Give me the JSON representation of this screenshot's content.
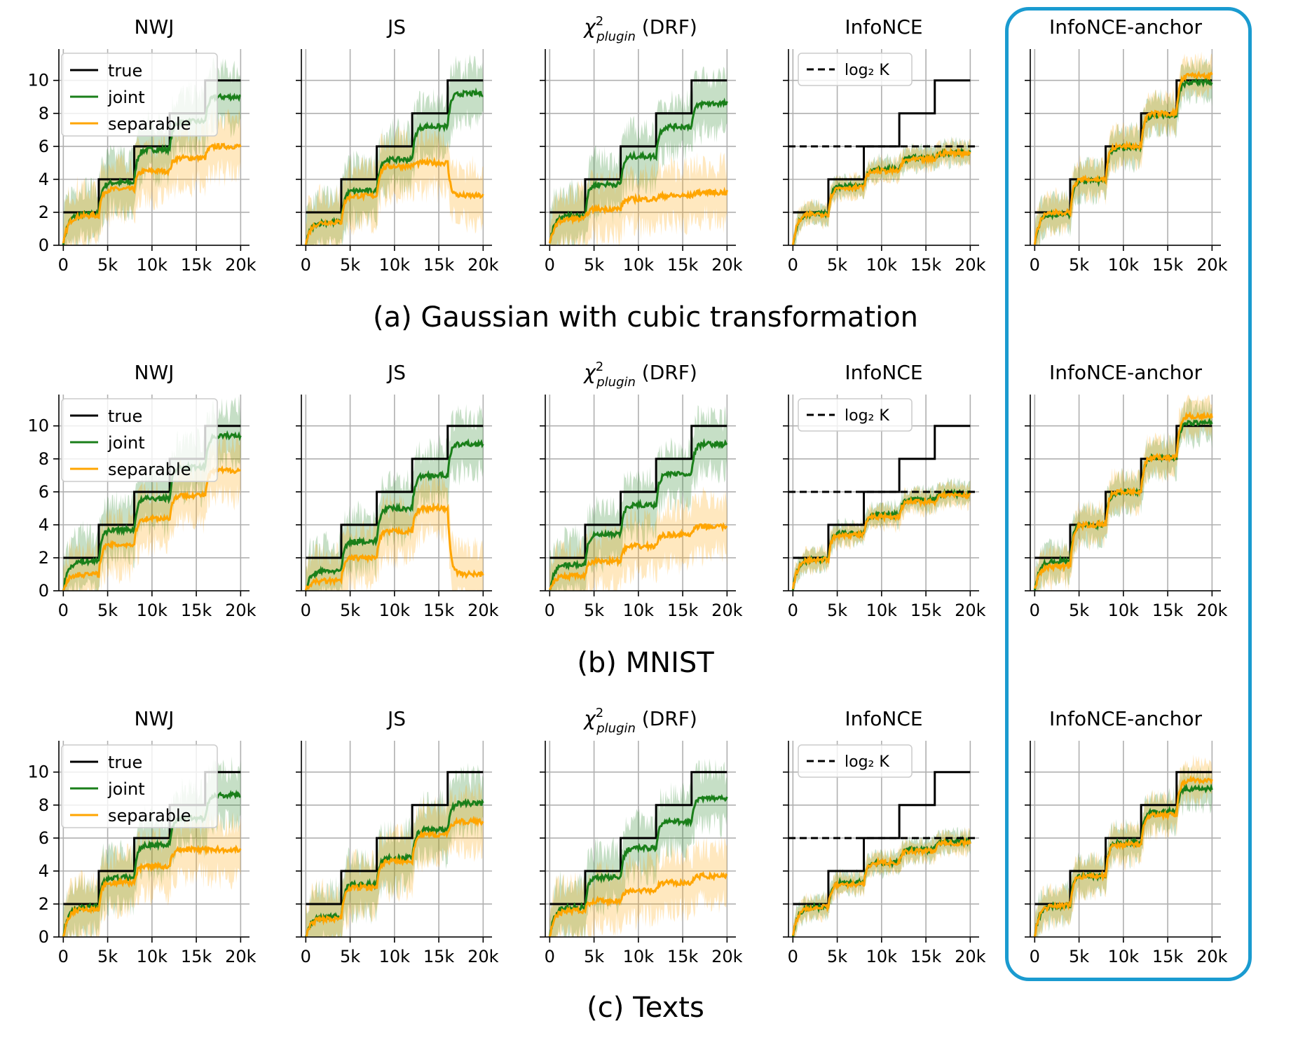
{
  "colors": {
    "true": "#000000",
    "joint": "#1a7f1a",
    "separable": "#ffa500",
    "highlight": "#1a9bd0"
  },
  "chart_data": [
    {
      "type": "line",
      "caption": "(a) Gaussian with cubic transformation",
      "panels": [
        {
          "title": "NWJ",
          "legend": [
            "true",
            "joint",
            "separable"
          ]
        },
        {
          "title": "JS"
        },
        {
          "title": "χ²plugin (DRF)"
        },
        {
          "title": "InfoNCE",
          "legend": [
            "log₂ K"
          ]
        },
        {
          "title": "InfoNCE-anchor",
          "highlighted": true
        }
      ],
      "x": [
        0,
        4000,
        8000,
        12000,
        16000,
        20000
      ],
      "true_steps": [
        2,
        4,
        6,
        8,
        10
      ],
      "series": {
        "NWJ": {
          "joint": [
            1.9,
            3.8,
            5.8,
            7.5,
            9.0
          ],
          "separable": [
            1.8,
            3.4,
            4.5,
            5.3,
            6.0
          ]
        },
        "JS": {
          "joint": [
            1.4,
            3.3,
            5.2,
            7.2,
            9.2
          ],
          "separable": [
            1.4,
            3.0,
            4.8,
            5.0,
            3.0
          ]
        },
        "χ²plugin (DRF)": {
          "joint": [
            1.8,
            3.7,
            5.4,
            7.2,
            8.6
          ],
          "separable": [
            1.6,
            2.2,
            2.8,
            3.0,
            3.2
          ]
        },
        "InfoNCE": {
          "joint": [
            1.9,
            3.6,
            4.6,
            5.3,
            5.6
          ],
          "separable": [
            1.9,
            3.5,
            4.5,
            5.2,
            5.6
          ],
          "logK": 6
        },
        "InfoNCE-anchor": {
          "joint": [
            1.9,
            3.9,
            5.9,
            7.9,
            9.9
          ],
          "separable": [
            2.0,
            4.0,
            6.0,
            8.0,
            10.3
          ]
        }
      }
    },
    {
      "type": "line",
      "caption": "(b) MNIST",
      "panels": [
        {
          "title": "NWJ",
          "legend": [
            "true",
            "joint",
            "separable"
          ]
        },
        {
          "title": "JS"
        },
        {
          "title": "χ²plugin (DRF)"
        },
        {
          "title": "InfoNCE",
          "legend": [
            "log₂ K"
          ]
        },
        {
          "title": "InfoNCE-anchor",
          "highlighted": true
        }
      ],
      "x": [
        0,
        4000,
        8000,
        12000,
        16000,
        20000
      ],
      "true_steps": [
        2,
        4,
        6,
        8,
        10
      ],
      "series": {
        "NWJ": {
          "joint": [
            1.8,
            3.7,
            5.6,
            7.5,
            9.4
          ],
          "separable": [
            1.0,
            2.8,
            4.4,
            5.8,
            7.3
          ]
        },
        "JS": {
          "joint": [
            1.2,
            3.0,
            5.0,
            7.0,
            8.9
          ],
          "separable": [
            0.6,
            2.0,
            3.6,
            5.0,
            1.0
          ]
        },
        "χ²plugin (DRF)": {
          "joint": [
            1.6,
            3.4,
            5.2,
            7.1,
            8.9
          ],
          "separable": [
            0.9,
            1.8,
            2.7,
            3.4,
            3.9
          ]
        },
        "InfoNCE": {
          "joint": [
            1.9,
            3.5,
            4.6,
            5.5,
            5.9
          ],
          "separable": [
            1.9,
            3.4,
            4.5,
            5.4,
            5.8
          ],
          "logK": 6
        },
        "InfoNCE-anchor": {
          "joint": [
            1.8,
            4.0,
            6.0,
            8.1,
            10.2
          ],
          "separable": [
            1.5,
            4.0,
            6.0,
            8.1,
            10.6
          ]
        }
      }
    },
    {
      "type": "line",
      "caption": "(c) Texts",
      "panels": [
        {
          "title": "NWJ",
          "legend": [
            "true",
            "joint",
            "separable"
          ]
        },
        {
          "title": "JS"
        },
        {
          "title": "χ²plugin (DRF)"
        },
        {
          "title": "InfoNCE",
          "legend": [
            "log₂ K"
          ]
        },
        {
          "title": "InfoNCE-anchor",
          "highlighted": true
        }
      ],
      "x": [
        0,
        4000,
        8000,
        12000,
        16000,
        20000
      ],
      "true_steps": [
        2,
        4,
        6,
        8,
        10
      ],
      "series": {
        "NWJ": {
          "joint": [
            1.8,
            3.6,
            5.6,
            7.2,
            8.6
          ],
          "separable": [
            1.7,
            3.3,
            4.3,
            5.3,
            5.3
          ]
        },
        "JS": {
          "joint": [
            1.2,
            3.2,
            4.8,
            6.5,
            8.1
          ],
          "separable": [
            1.1,
            3.0,
            4.6,
            6.2,
            7.0
          ]
        },
        "χ²plugin (DRF)": {
          "joint": [
            1.8,
            3.6,
            5.4,
            7.0,
            8.4
          ],
          "separable": [
            1.6,
            2.2,
            2.8,
            3.3,
            3.7
          ]
        },
        "InfoNCE": {
          "joint": [
            1.8,
            3.3,
            4.5,
            5.3,
            5.8
          ],
          "separable": [
            1.8,
            3.2,
            4.5,
            5.2,
            5.7
          ],
          "logK": 6
        },
        "InfoNCE-anchor": {
          "joint": [
            1.9,
            3.7,
            5.7,
            7.6,
            9.0
          ],
          "separable": [
            1.9,
            3.7,
            5.6,
            7.4,
            9.5
          ]
        }
      }
    }
  ],
  "axes": {
    "xticks": [
      "0",
      "5k",
      "10k",
      "15k",
      "20k"
    ],
    "xtick_values": [
      0,
      5000,
      10000,
      15000,
      20000
    ],
    "yticks": [
      "0",
      "2",
      "4",
      "6",
      "8",
      "10"
    ],
    "ytick_values": [
      0,
      2,
      4,
      6,
      8,
      10
    ],
    "xlim": [
      -500,
      21000
    ],
    "ylim": [
      0,
      11.9
    ],
    "grid": true
  },
  "legend_labels": {
    "true": "true",
    "joint": "joint",
    "separable": "separable",
    "logK": "log₂ K"
  }
}
